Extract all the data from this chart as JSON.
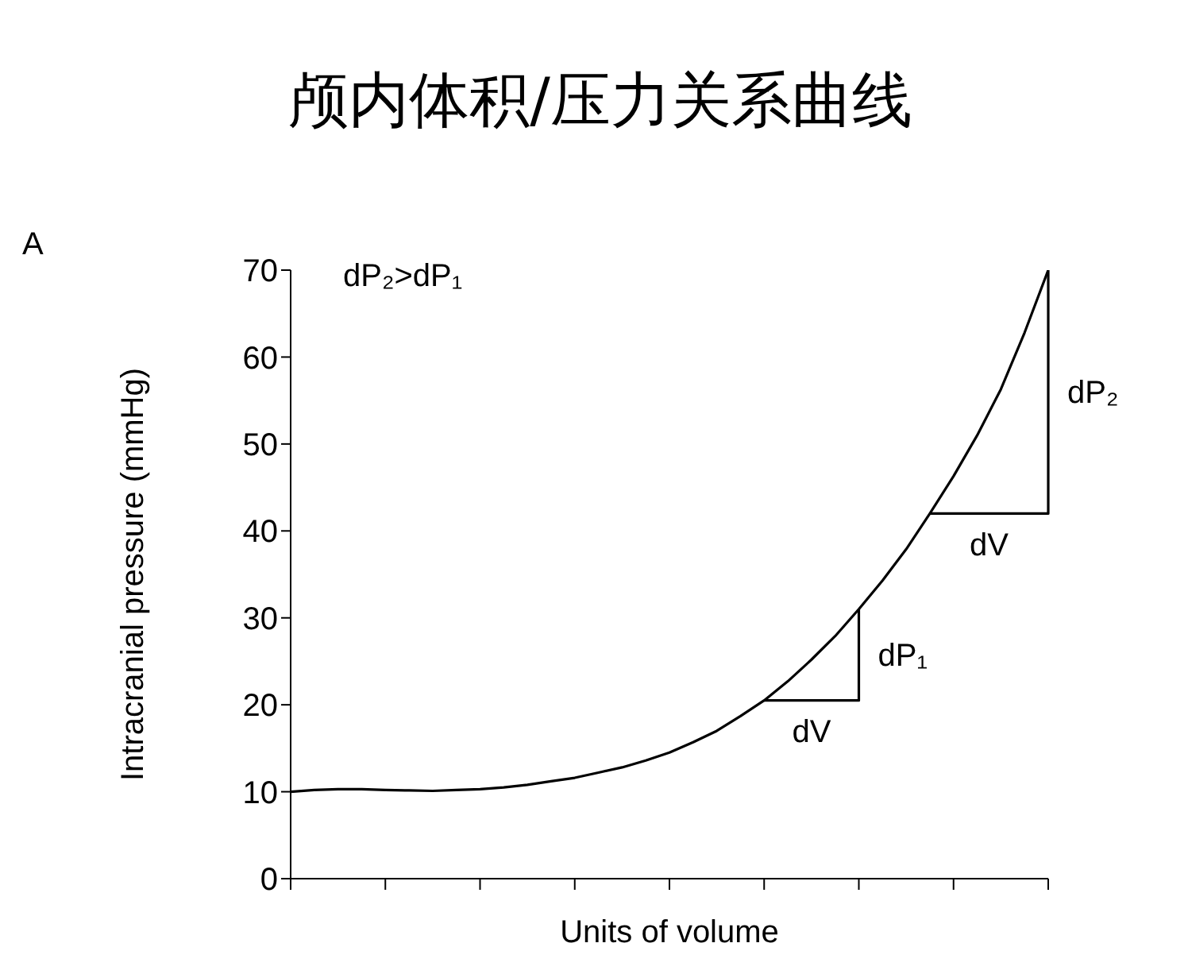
{
  "chart_data": {
    "type": "line",
    "title": "颅内体积/压力关系曲线",
    "xlabel": "Units of volume",
    "ylabel": "Intracranial pressure (mmHg)",
    "categories": [
      null,
      null,
      null,
      null,
      null,
      null,
      null,
      null,
      null,
      null,
      null,
      null,
      null,
      null,
      null,
      null,
      null,
      null,
      null,
      null,
      null,
      null,
      null,
      null,
      null,
      null,
      null,
      null,
      null,
      null,
      null,
      null,
      null
    ],
    "ylim": [
      0,
      70
    ],
    "yticks": [
      0,
      10,
      20,
      30,
      40,
      50,
      60,
      70
    ],
    "tick_labels": "y",
    "series": [
      {
        "color": "#000000",
        "values": [
          10,
          10.2,
          10.3,
          10.3,
          10.2,
          10.15,
          10.1,
          10.2,
          10.3,
          10.5,
          10.8,
          11.2,
          11.6,
          12.2,
          12.8,
          13.6,
          14.5,
          15.7,
          17,
          18.7,
          20.5,
          22.7,
          25.2,
          27.9,
          31,
          34.3,
          37.9,
          42,
          46.3,
          51,
          56.3,
          62.8,
          70
        ]
      }
    ],
    "annotations": [
      "A",
      "dP₂>dP₁",
      "dV",
      "dP₁",
      "dV",
      "dP₂"
    ]
  }
}
